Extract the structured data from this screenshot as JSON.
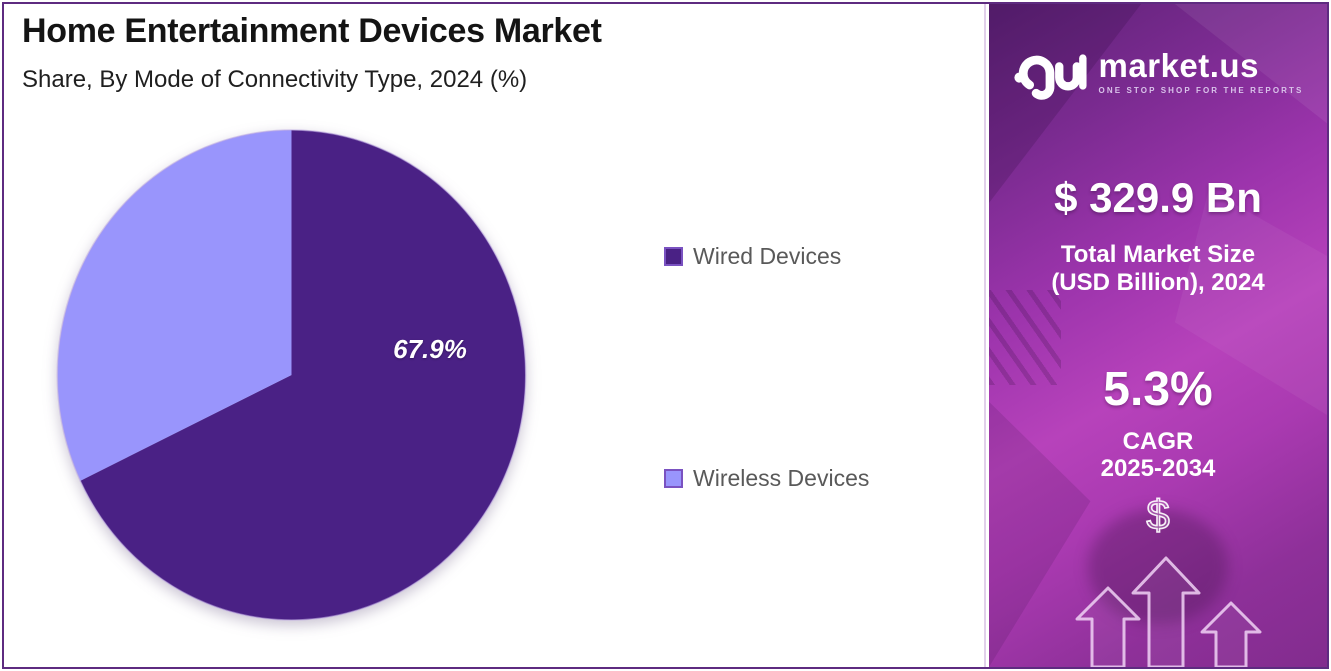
{
  "page": {
    "title": "Home Entertainment Devices Market",
    "subtitle": "Share, By Mode of Connectivity Type, 2024 (%)"
  },
  "chart_data": {
    "type": "pie",
    "title": "Home Entertainment Devices Market",
    "subtitle": "Share, By Mode of Connectivity Type, 2024 (%)",
    "unit": "%",
    "year": "2024",
    "start_angle_deg": -90,
    "direction": "clockwise",
    "legend_position": "right",
    "slices": [
      {
        "label": "Wired Devices",
        "value": 67.9,
        "color": "#4A2185",
        "data_label": "67.9%"
      },
      {
        "label": "Wireless Devices",
        "value": 32.1,
        "color": "#9995FC",
        "data_label": ""
      }
    ]
  },
  "sidebar": {
    "logo": {
      "icon": "market-us-logo-icon",
      "brand": "market.us",
      "tagline": "ONE STOP SHOP FOR THE REPORTS"
    },
    "market_size_value": "$ 329.9 Bn",
    "market_size_label_line1": "Total Market Size",
    "market_size_label_line2": "(USD Billion), 2024",
    "cagr_value": "5.3%",
    "cagr_label_line1": "CAGR",
    "cagr_label_line2": "2025-2034",
    "dollar_icon": "$"
  },
  "colors": {
    "frame_border": "#5e2b80",
    "wired_slice": "#4A2185",
    "wireless_slice": "#9995FC",
    "legend_text": "#595959",
    "sidebar_gradient_start": "#5c2175",
    "sidebar_gradient_mid": "#b742bb",
    "sidebar_gradient_end": "#822c8e",
    "pie_label_text": "#ffffff"
  }
}
